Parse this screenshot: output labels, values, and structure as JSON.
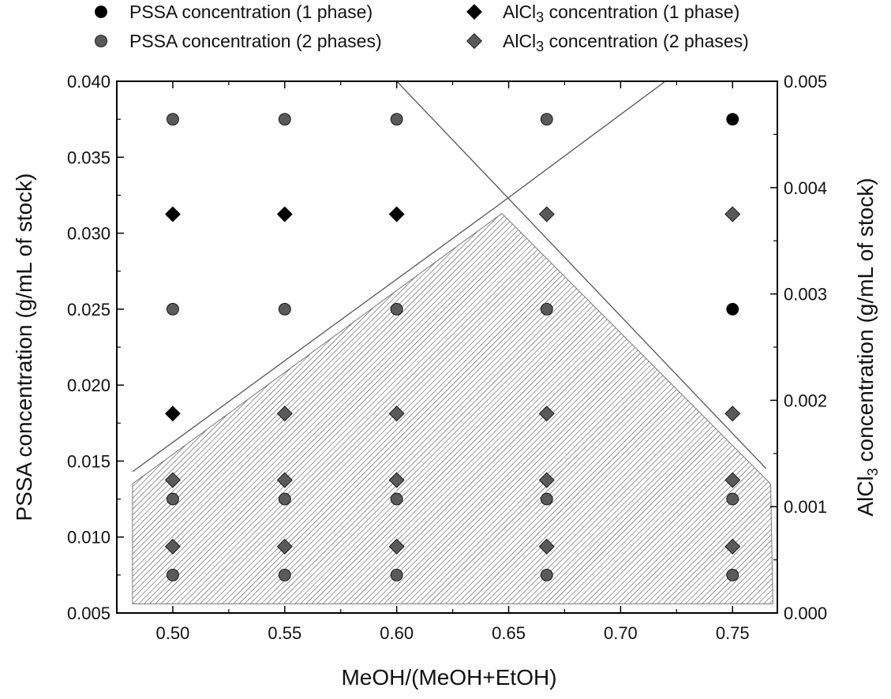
{
  "chart_data": {
    "type": "scatter",
    "xlabel": "MeOH/(MeOH+EtOH)",
    "ylabel_left": "PSSA concentration (g/mL of stock)",
    "ylabel_right": {
      "prefix": "AlCl",
      "sub": "3",
      "suffix": " concentration (g/mL of stock)"
    },
    "x_ticks": [
      "0.50",
      "0.55",
      "0.60",
      "0.65",
      "0.70",
      "0.75"
    ],
    "y_left_ticks": [
      "0.005",
      "0.010",
      "0.015",
      "0.020",
      "0.025",
      "0.030",
      "0.035",
      "0.040"
    ],
    "y_right_ticks": [
      "0.000",
      "0.001",
      "0.002",
      "0.003",
      "0.004",
      "0.005"
    ],
    "xlim": [
      0.475,
      0.77
    ],
    "ylim_left": [
      0.005,
      0.04
    ],
    "ylim_right": [
      0.0,
      0.005
    ],
    "grid": false,
    "legend_position": "top",
    "series": [
      {
        "name": "PSSA concentration (1 phase)",
        "name_prefix": "PSSA concentration (1 phase)",
        "name_sub": "",
        "name_suffix": "",
        "marker": "circle",
        "color": "#000000",
        "axis": "left",
        "points": [
          [
            0.75,
            0.0375
          ],
          [
            0.75,
            0.025
          ]
        ]
      },
      {
        "name": "PSSA concentration (2 phases)",
        "name_prefix": "PSSA concentration (2 phases)",
        "name_sub": "",
        "name_suffix": "",
        "marker": "circle",
        "color": "#5a5a5a",
        "axis": "left",
        "points": [
          [
            0.5,
            0.0375
          ],
          [
            0.55,
            0.0375
          ],
          [
            0.6,
            0.0375
          ],
          [
            0.667,
            0.0375
          ],
          [
            0.5,
            0.025
          ],
          [
            0.55,
            0.025
          ],
          [
            0.6,
            0.025
          ],
          [
            0.667,
            0.025
          ],
          [
            0.5,
            0.0125
          ],
          [
            0.55,
            0.0125
          ],
          [
            0.6,
            0.0125
          ],
          [
            0.667,
            0.0125
          ],
          [
            0.75,
            0.0125
          ],
          [
            0.5,
            0.0075
          ],
          [
            0.55,
            0.0075
          ],
          [
            0.6,
            0.0075
          ],
          [
            0.667,
            0.0075
          ],
          [
            0.75,
            0.0075
          ]
        ]
      },
      {
        "name": "AlCl3 concentration (1 phase)",
        "name_prefix": "AlCl",
        "name_sub": "3",
        "name_suffix": " concentration (1 phase)",
        "marker": "diamond",
        "color": "#000000",
        "axis": "right",
        "points": [
          [
            0.5,
            0.00375
          ],
          [
            0.55,
            0.00375
          ],
          [
            0.6,
            0.00375
          ],
          [
            0.5,
            0.001875
          ]
        ]
      },
      {
        "name": "AlCl3 concentration (2 phases)",
        "name_prefix": "AlCl",
        "name_sub": "3",
        "name_suffix": " concentration (2 phases)",
        "marker": "diamond",
        "color": "#5a5a5a",
        "axis": "right",
        "points": [
          [
            0.667,
            0.00375
          ],
          [
            0.75,
            0.00375
          ],
          [
            0.55,
            0.001875
          ],
          [
            0.6,
            0.001875
          ],
          [
            0.667,
            0.001875
          ],
          [
            0.75,
            0.001875
          ],
          [
            0.5,
            0.00125
          ],
          [
            0.55,
            0.00125
          ],
          [
            0.6,
            0.00125
          ],
          [
            0.667,
            0.00125
          ],
          [
            0.75,
            0.00125
          ],
          [
            0.5,
            0.000625
          ],
          [
            0.55,
            0.000625
          ],
          [
            0.6,
            0.000625
          ],
          [
            0.667,
            0.000625
          ],
          [
            0.75,
            0.000625
          ]
        ]
      }
    ],
    "boundary_lines": [
      {
        "axis": "left",
        "points": [
          [
            0.482,
            0.0143
          ],
          [
            0.645,
            0.0318
          ],
          [
            0.72,
            0.04
          ]
        ]
      },
      {
        "axis": "left",
        "points": [
          [
            0.6,
            0.04
          ],
          [
            0.765,
            0.0145
          ]
        ]
      }
    ],
    "shaded_region": {
      "axis": "left",
      "polygon": [
        [
          0.482,
          0.0056
        ],
        [
          0.482,
          0.0135
        ],
        [
          0.647,
          0.0313
        ],
        [
          0.767,
          0.0135
        ],
        [
          0.768,
          0.0056
        ]
      ]
    }
  }
}
